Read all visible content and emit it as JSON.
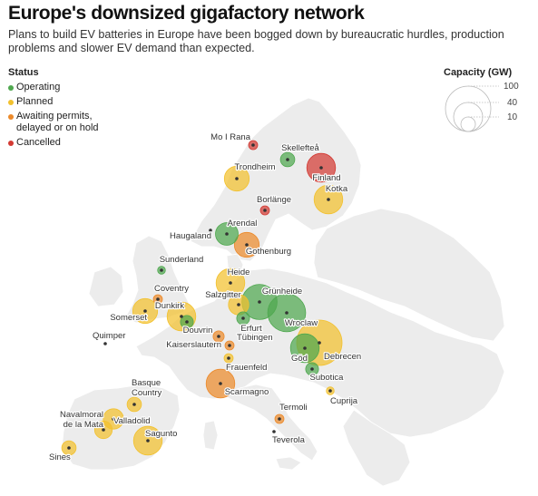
{
  "header": {
    "title": "Europe's downsized gigafactory network",
    "subtitle": "Plans to build EV batteries in Europe have been bogged down by bureaucratic hurdles, production problems and slower EV demand than expected."
  },
  "legend": {
    "status_title": "Status",
    "statuses": [
      {
        "label": "Operating",
        "color": "#4fa84f"
      },
      {
        "label": "Planned",
        "color": "#f2c12e"
      },
      {
        "label": "Awaiting permits, delayed or on hold",
        "color": "#ec8a2b"
      },
      {
        "label": "Cancelled",
        "color": "#d33a33"
      }
    ],
    "capacity_title": "Capacity (GW)",
    "capacity_values": [
      "100",
      "40",
      "10"
    ]
  },
  "sites": [
    {
      "name": "Mo I Rana",
      "status": "Cancelled",
      "capacity_gw": 4
    },
    {
      "name": "Skellefteå",
      "status": "Operating",
      "capacity_gw": 10
    },
    {
      "name": "Finland",
      "status": "Cancelled",
      "capacity_gw": 40
    },
    {
      "name": "Kotka",
      "status": "Planned",
      "capacity_gw": 40
    },
    {
      "name": "Trondheim",
      "status": "Planned",
      "capacity_gw": 30
    },
    {
      "name": "Borlänge",
      "status": "Cancelled",
      "capacity_gw": 4
    },
    {
      "name": "Haugaland",
      "status": "",
      "capacity_gw": 0
    },
    {
      "name": "Arendal",
      "status": "Operating",
      "capacity_gw": 25
    },
    {
      "name": "Gothenburg",
      "status": "Awaiting permits, delayed or on hold",
      "capacity_gw": 30
    },
    {
      "name": "Sunderland",
      "status": "Operating",
      "capacity_gw": 3
    },
    {
      "name": "Heide",
      "status": "Planned",
      "capacity_gw": 40
    },
    {
      "name": "Coventry",
      "status": "Awaiting permits, delayed or on hold",
      "capacity_gw": 4
    },
    {
      "name": "Salzgitter",
      "status": "Planned",
      "capacity_gw": 20
    },
    {
      "name": "Grünheide",
      "status": "Operating",
      "capacity_gw": 60
    },
    {
      "name": "Somerset",
      "status": "Planned",
      "capacity_gw": 30
    },
    {
      "name": "Dunkirk",
      "status": "Planned",
      "capacity_gw": 40
    },
    {
      "name": "Douvrin",
      "status": "Operating",
      "capacity_gw": 8
    },
    {
      "name": "Wroclaw",
      "status": "Operating",
      "capacity_gw": 70
    },
    {
      "name": "Erfurt",
      "status": "Operating",
      "capacity_gw": 8
    },
    {
      "name": "Kaiserslautern",
      "status": "Awaiting permits, delayed or on hold",
      "capacity_gw": 6
    },
    {
      "name": "Tübingen",
      "status": "Awaiting permits, delayed or on hold",
      "capacity_gw": 4
    },
    {
      "name": "Quimper",
      "status": "",
      "capacity_gw": 0
    },
    {
      "name": "Frauenfeld",
      "status": "Planned",
      "capacity_gw": 4
    },
    {
      "name": "Göd",
      "status": "Operating",
      "capacity_gw": 40
    },
    {
      "name": "Debrecen",
      "status": "Planned",
      "capacity_gw": 100
    },
    {
      "name": "Subotica",
      "status": "Operating",
      "capacity_gw": 8
    },
    {
      "name": "Scarmagno",
      "status": "Awaiting permits, delayed or on hold",
      "capacity_gw": 40
    },
    {
      "name": "Basque Country",
      "status": "Planned",
      "capacity_gw": 10
    },
    {
      "name": "Cuprija",
      "status": "Planned",
      "capacity_gw": 3
    },
    {
      "name": "Navalmoral de la Mata",
      "status": "Planned",
      "capacity_gw": 15
    },
    {
      "name": "Valladolid",
      "status": "Planned",
      "capacity_gw": 20
    },
    {
      "name": "Sagunto",
      "status": "Planned",
      "capacity_gw": 40
    },
    {
      "name": "Termoli",
      "status": "Awaiting permits, delayed or on hold",
      "capacity_gw": 4
    },
    {
      "name": "Teverola",
      "status": "",
      "capacity_gw": 0
    },
    {
      "name": "Sines",
      "status": "Planned",
      "capacity_gw": 10
    }
  ]
}
